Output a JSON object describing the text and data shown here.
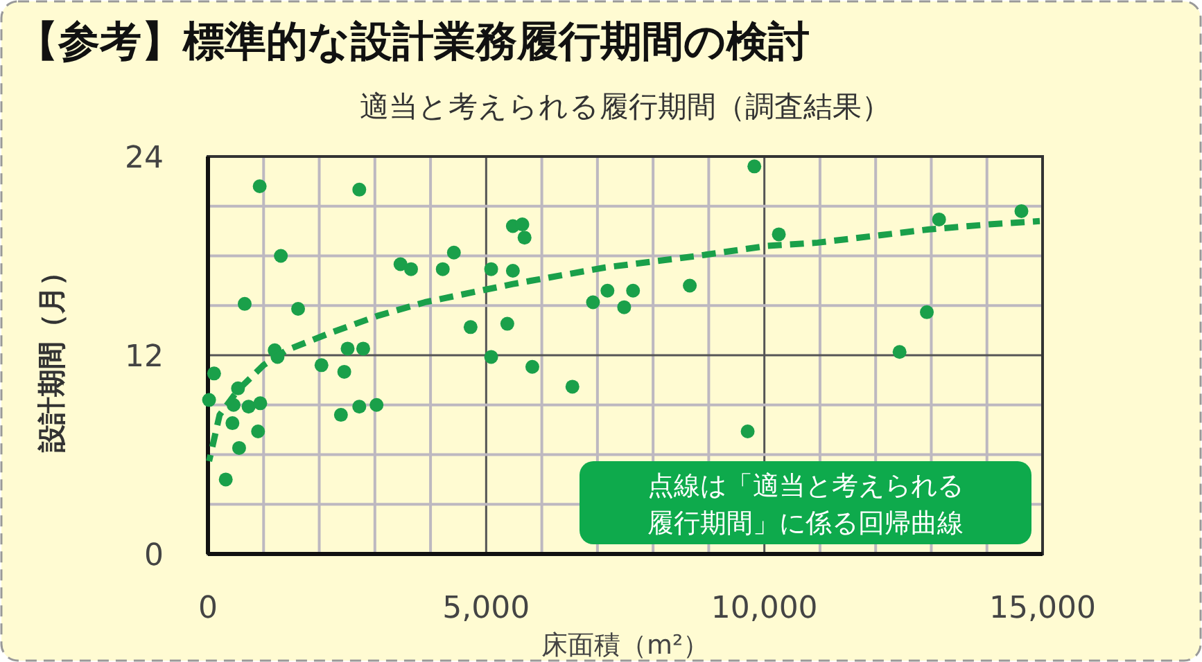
{
  "chart_data": {
    "type": "scatter",
    "title": "【参考】標準的な設計業務履行期間の検討",
    "subtitle": "適当と考えられる履行期間（調査結果）",
    "xlabel": "床面積（m²）",
    "ylabel": "設計期間（月）",
    "annotations": [
      "点線は「適当と考えられる履行期間」に係る回帰曲線"
    ],
    "xlim": [
      0,
      15000
    ],
    "ylim": [
      0,
      24
    ],
    "xticks": [
      0,
      {
        "value": 1000,
        "label": null
      },
      {
        "value": 2000,
        "label": null
      },
      {
        "value": 3000,
        "label": null
      },
      {
        "value": 4000,
        "label": null
      },
      {
        "value": 5000,
        "label": "5,000"
      },
      {
        "value": 6000,
        "label": null
      },
      {
        "value": 7000,
        "label": null
      },
      {
        "value": 8000,
        "label": null
      },
      {
        "value": 9000,
        "label": null
      },
      {
        "value": 10000,
        "label": "10,000"
      },
      {
        "value": 11000,
        "label": null
      },
      {
        "value": 12000,
        "label": null
      },
      {
        "value": 13000,
        "label": null
      },
      {
        "value": 14000,
        "label": null
      },
      {
        "value": 15000,
        "label": "15,000"
      }
    ],
    "yticks": [
      0,
      {
        "value": 3,
        "label": null
      },
      {
        "value": 6,
        "label": null
      },
      {
        "value": 9,
        "label": null
      },
      12,
      {
        "value": 15,
        "label": null
      },
      {
        "value": 18,
        "label": null
      },
      {
        "value": 21,
        "label": null
      },
      24
    ],
    "grid": true,
    "marker": "circle",
    "series": [
      {
        "color": "#1aa04a",
        "x": [
          930,
          2720,
          1310,
          660,
          1620,
          1200,
          1250,
          2040,
          2450,
          2510,
          2790,
          110,
          540,
          20,
          460,
          730,
          940,
          440,
          900,
          560,
          320,
          2390,
          2720,
          3030,
          3460,
          3650,
          4220,
          4420,
          4720,
          5090,
          5090,
          5480,
          5380,
          5480,
          5650,
          5690,
          5830,
          6550,
          6920,
          7180,
          7480,
          7640,
          8660,
          9820,
          9700,
          10260,
          13140,
          14620,
          12920,
          12430
        ],
        "values": [
          22.2,
          22.0,
          18.0,
          15.1,
          14.8,
          12.3,
          11.9,
          11.4,
          11.0,
          12.4,
          12.4,
          10.9,
          10.0,
          9.3,
          9.0,
          8.9,
          9.1,
          7.9,
          7.4,
          6.4,
          4.5,
          8.4,
          8.9,
          9.0,
          17.5,
          17.2,
          17.2,
          18.2,
          13.7,
          17.2,
          11.9,
          17.1,
          13.9,
          19.8,
          19.9,
          19.1,
          11.3,
          10.1,
          15.2,
          15.9,
          14.9,
          15.9,
          16.2,
          23.4,
          7.4,
          19.3,
          20.2,
          20.7,
          14.6,
          12.2
        ]
      },
      {
        "type": "line",
        "line_style": "dashed",
        "marker": "none",
        "color": "#1aa04a",
        "x": [
          20,
          210,
          540,
          1000,
          1410,
          2240,
          3070,
          3900,
          4900,
          5480,
          7140,
          8800,
          10050,
          10960,
          11960,
          12960,
          14040,
          14950
        ],
        "values": [
          5.6,
          8.4,
          9.9,
          11.4,
          12.3,
          13.4,
          14.4,
          15.2,
          15.9,
          16.3,
          17.3,
          18.0,
          18.6,
          18.8,
          19.2,
          19.6,
          19.9,
          20.1
        ]
      }
    ]
  }
}
